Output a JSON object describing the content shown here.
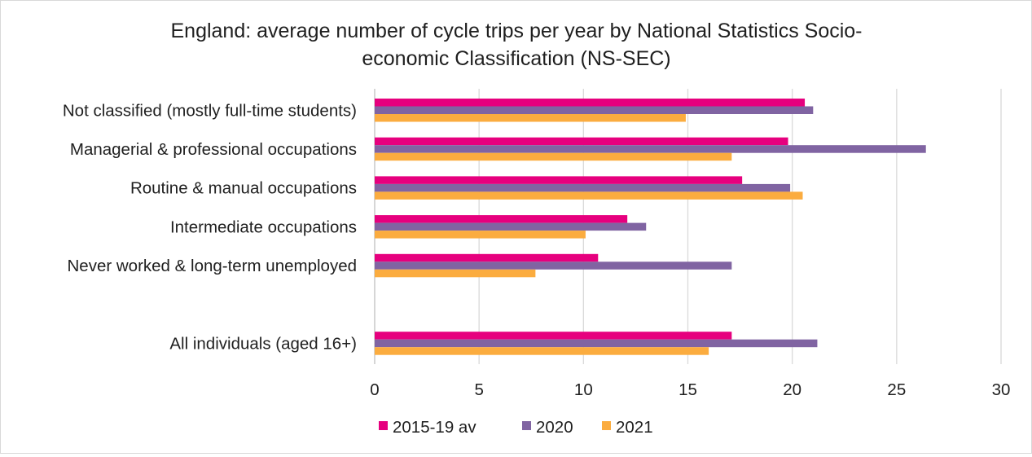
{
  "chart_data": {
    "type": "bar",
    "orientation": "horizontal",
    "title_lines": [
      "England: average number of cycle trips per year by National Statistics Socio-",
      "economic Classification (NS-SEC)"
    ],
    "categories": [
      "Not classified (mostly full-time students)",
      "Managerial & professional occupations",
      "Routine & manual occupations",
      "Intermediate occupations",
      "Never worked & long-term unemployed",
      "",
      "All individuals (aged 16+)"
    ],
    "series": [
      {
        "name": "2015-19 av",
        "color": "#e6007e",
        "values": [
          20.6,
          19.8,
          17.6,
          12.1,
          10.7,
          null,
          17.1
        ]
      },
      {
        "name": "2020",
        "color": "#8064a2",
        "values": [
          21.0,
          26.4,
          19.9,
          13.0,
          17.1,
          null,
          21.2
        ]
      },
      {
        "name": "2021",
        "color": "#fbac3f",
        "values": [
          14.9,
          17.1,
          20.5,
          10.1,
          7.7,
          null,
          16.0
        ]
      }
    ],
    "xlim": [
      0,
      30
    ],
    "xticks": [
      "0",
      "5",
      "10",
      "15",
      "20",
      "25",
      "30"
    ],
    "grid": true,
    "legend_position": "bottom"
  }
}
